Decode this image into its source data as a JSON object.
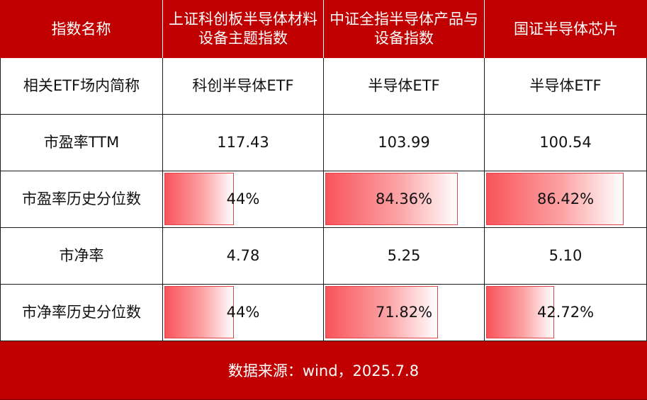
{
  "header": [
    "指数名称",
    "上证科创板半导体材料设备主题指数",
    "中证全指半导体产品与设备指数",
    "国证半导体芯片"
  ],
  "rows": [
    {
      "label": "相关ETF场内简称",
      "values": [
        "科创半导体ETF",
        "半导体ETF",
        "半导体ETF"
      ]
    },
    {
      "label": "市盈率TTM",
      "values": [
        "117.43",
        "103.99",
        "100.54"
      ]
    },
    {
      "label": "市盈率历史分位数",
      "values": [
        "44%",
        "84.36%",
        "86.42%"
      ],
      "levels": [
        0.44,
        0.8436,
        0.8642
      ]
    },
    {
      "label": "市净率",
      "values": [
        "4.78",
        "5.25",
        "5.10"
      ]
    },
    {
      "label": "市净率历史分位数",
      "values": [
        "44%",
        "71.82%",
        "42.72%"
      ],
      "levels": [
        0.44,
        0.7182,
        0.4272
      ]
    }
  ],
  "footer": "数据来源：wind，2025.7.8",
  "colors": {
    "header_bg": "#c00000",
    "bar_start": "#f8545a",
    "bar_end": "#ffffff"
  }
}
